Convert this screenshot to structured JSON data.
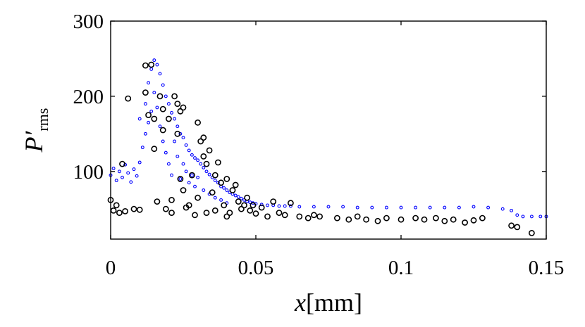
{
  "chart_data": {
    "type": "scatter",
    "title": "",
    "xlabel": {
      "var": "x",
      "unit": "[mm]"
    },
    "ylabel": {
      "var": "P′",
      "sub": "rms"
    },
    "xlim": [
      0,
      0.15
    ],
    "ylim": [
      10,
      300
    ],
    "xticks": [
      0,
      0.05,
      0.1,
      0.15
    ],
    "xtick_labels": [
      "0",
      "0.05",
      "0.1",
      "0.15"
    ],
    "yticks": [
      100,
      200,
      300
    ],
    "ytick_labels": [
      "100",
      "200",
      "300"
    ],
    "grid": false,
    "legend": "none",
    "series": [
      {
        "color": "#0000ff",
        "marker": "small-circle",
        "points": [
          [
            0.0,
            95
          ],
          [
            0.001,
            104
          ],
          [
            0.002,
            88
          ],
          [
            0.003,
            100
          ],
          [
            0.004,
            92
          ],
          [
            0.005,
            109
          ],
          [
            0.006,
            98
          ],
          [
            0.007,
            86
          ],
          [
            0.008,
            103
          ],
          [
            0.009,
            94
          ],
          [
            0.01,
            112
          ],
          [
            0.01,
            170
          ],
          [
            0.011,
            132
          ],
          [
            0.012,
            190
          ],
          [
            0.012,
            150
          ],
          [
            0.013,
            218
          ],
          [
            0.013,
            165
          ],
          [
            0.014,
            236
          ],
          [
            0.014,
            180
          ],
          [
            0.015,
            248
          ],
          [
            0.015,
            205
          ],
          [
            0.016,
            242
          ],
          [
            0.016,
            185
          ],
          [
            0.017,
            230
          ],
          [
            0.017,
            160
          ],
          [
            0.018,
            215
          ],
          [
            0.018,
            140
          ],
          [
            0.019,
            200
          ],
          [
            0.019,
            125
          ],
          [
            0.02,
            190
          ],
          [
            0.02,
            110
          ],
          [
            0.021,
            178
          ],
          [
            0.021,
            95
          ],
          [
            0.022,
            170
          ],
          [
            0.022,
            140
          ],
          [
            0.023,
            160
          ],
          [
            0.023,
            120
          ],
          [
            0.024,
            150
          ],
          [
            0.024,
            90
          ],
          [
            0.025,
            145
          ],
          [
            0.025,
            110
          ],
          [
            0.026,
            135
          ],
          [
            0.026,
            100
          ],
          [
            0.027,
            128
          ],
          [
            0.027,
            85
          ],
          [
            0.028,
            122
          ],
          [
            0.028,
            95
          ],
          [
            0.029,
            118
          ],
          [
            0.029,
            80
          ],
          [
            0.03,
            115
          ],
          [
            0.03,
            92
          ],
          [
            0.031,
            110
          ],
          [
            0.032,
            105
          ],
          [
            0.032,
            75
          ],
          [
            0.033,
            100
          ],
          [
            0.034,
            96
          ],
          [
            0.034,
            70
          ],
          [
            0.035,
            92
          ],
          [
            0.036,
            88
          ],
          [
            0.036,
            65
          ],
          [
            0.037,
            85
          ],
          [
            0.038,
            80
          ],
          [
            0.038,
            62
          ],
          [
            0.039,
            78
          ],
          [
            0.04,
            75
          ],
          [
            0.04,
            58
          ],
          [
            0.041,
            72
          ],
          [
            0.042,
            70
          ],
          [
            0.043,
            68
          ],
          [
            0.044,
            66
          ],
          [
            0.045,
            64
          ],
          [
            0.046,
            62
          ],
          [
            0.047,
            60
          ],
          [
            0.048,
            59
          ],
          [
            0.049,
            58
          ],
          [
            0.05,
            57
          ],
          [
            0.052,
            56
          ],
          [
            0.054,
            55
          ],
          [
            0.056,
            55
          ],
          [
            0.058,
            54
          ],
          [
            0.06,
            54
          ],
          [
            0.062,
            54
          ],
          [
            0.065,
            53
          ],
          [
            0.07,
            53
          ],
          [
            0.075,
            53
          ],
          [
            0.08,
            53
          ],
          [
            0.085,
            52
          ],
          [
            0.09,
            52
          ],
          [
            0.095,
            52
          ],
          [
            0.1,
            52
          ],
          [
            0.105,
            52
          ],
          [
            0.11,
            52
          ],
          [
            0.115,
            52
          ],
          [
            0.12,
            52
          ],
          [
            0.125,
            53
          ],
          [
            0.13,
            52
          ],
          [
            0.135,
            50
          ],
          [
            0.138,
            48
          ],
          [
            0.14,
            42
          ],
          [
            0.142,
            40
          ],
          [
            0.145,
            40
          ],
          [
            0.148,
            40
          ],
          [
            0.15,
            40
          ]
        ]
      },
      {
        "color": "#000000",
        "marker": "open-circle",
        "points": [
          [
            0.0,
            62
          ],
          [
            0.001,
            48
          ],
          [
            0.002,
            55
          ],
          [
            0.003,
            45
          ],
          [
            0.004,
            110
          ],
          [
            0.005,
            47
          ],
          [
            0.006,
            197
          ],
          [
            0.008,
            50
          ],
          [
            0.01,
            49
          ],
          [
            0.012,
            241
          ],
          [
            0.012,
            205
          ],
          [
            0.013,
            175
          ],
          [
            0.014,
            242
          ],
          [
            0.015,
            170
          ],
          [
            0.015,
            130
          ],
          [
            0.016,
            60
          ],
          [
            0.017,
            200
          ],
          [
            0.018,
            183
          ],
          [
            0.018,
            155
          ],
          [
            0.019,
            50
          ],
          [
            0.02,
            170
          ],
          [
            0.021,
            62
          ],
          [
            0.021,
            45
          ],
          [
            0.022,
            200
          ],
          [
            0.023,
            190
          ],
          [
            0.023,
            150
          ],
          [
            0.024,
            180
          ],
          [
            0.024,
            90
          ],
          [
            0.025,
            185
          ],
          [
            0.025,
            75
          ],
          [
            0.026,
            52
          ],
          [
            0.027,
            55
          ],
          [
            0.028,
            95
          ],
          [
            0.029,
            42
          ],
          [
            0.03,
            165
          ],
          [
            0.03,
            65
          ],
          [
            0.031,
            140
          ],
          [
            0.032,
            145
          ],
          [
            0.032,
            120
          ],
          [
            0.033,
            110
          ],
          [
            0.033,
            45
          ],
          [
            0.034,
            128
          ],
          [
            0.035,
            72
          ],
          [
            0.036,
            95
          ],
          [
            0.036,
            48
          ],
          [
            0.037,
            112
          ],
          [
            0.038,
            85
          ],
          [
            0.039,
            55
          ],
          [
            0.04,
            90
          ],
          [
            0.04,
            40
          ],
          [
            0.041,
            45
          ],
          [
            0.042,
            75
          ],
          [
            0.043,
            82
          ],
          [
            0.044,
            60
          ],
          [
            0.045,
            50
          ],
          [
            0.046,
            55
          ],
          [
            0.047,
            65
          ],
          [
            0.048,
            48
          ],
          [
            0.049,
            55
          ],
          [
            0.05,
            44
          ],
          [
            0.052,
            52
          ],
          [
            0.054,
            40
          ],
          [
            0.056,
            60
          ],
          [
            0.058,
            45
          ],
          [
            0.06,
            42
          ],
          [
            0.062,
            58
          ],
          [
            0.065,
            40
          ],
          [
            0.068,
            38
          ],
          [
            0.07,
            42
          ],
          [
            0.072,
            40
          ],
          [
            0.078,
            38
          ],
          [
            0.082,
            36
          ],
          [
            0.085,
            40
          ],
          [
            0.088,
            36
          ],
          [
            0.092,
            34
          ],
          [
            0.095,
            38
          ],
          [
            0.1,
            36
          ],
          [
            0.105,
            38
          ],
          [
            0.108,
            36
          ],
          [
            0.112,
            38
          ],
          [
            0.115,
            34
          ],
          [
            0.118,
            36
          ],
          [
            0.122,
            32
          ],
          [
            0.125,
            35
          ],
          [
            0.128,
            38
          ],
          [
            0.138,
            28
          ],
          [
            0.14,
            26
          ],
          [
            0.145,
            18
          ]
        ]
      }
    ]
  }
}
